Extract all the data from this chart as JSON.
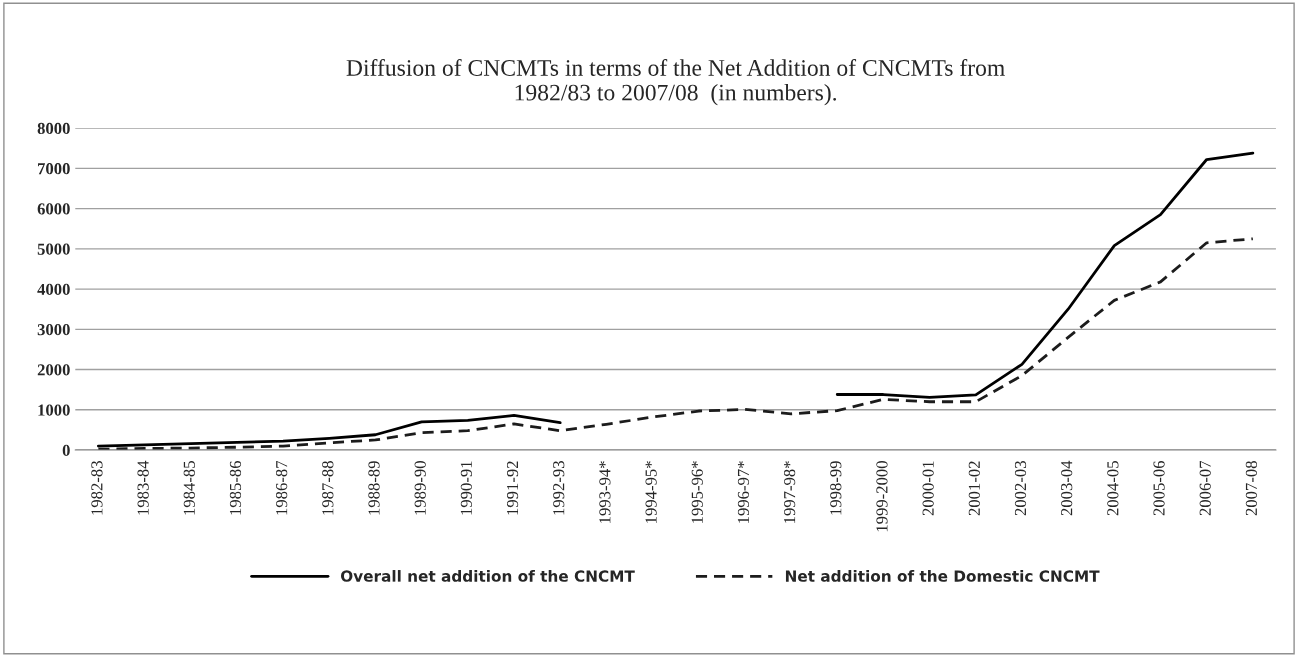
{
  "chart_data": {
    "type": "line",
    "title": "Diffusion of CNCMTs in terms of the Net Addition of CNCMTs from\n1982/83 to 2007/08  (in numbers).",
    "categories": [
      "1982-83",
      "1983-84",
      "1984-85",
      "1985-86",
      "1986-87",
      "1987-88",
      "1988-89",
      "1989-90",
      "1990-91",
      "1991-92",
      "1992-93",
      "1993-94*",
      "1994-95*",
      "1995-96*",
      "1996-97*",
      "1997-98*",
      "1998-99",
      "1999-2000",
      "2000-01",
      "2001-02",
      "2002-03",
      "2003-04",
      "2004-05",
      "2005-06",
      "2006-07",
      "2007-08"
    ],
    "series": [
      {
        "name": "Overall net addition of the CNCMT",
        "color": "#000000",
        "line_style": "solid",
        "values": [
          100,
          130,
          160,
          190,
          220,
          290,
          380,
          700,
          740,
          860,
          680,
          null,
          null,
          null,
          null,
          null,
          1380,
          1380,
          1310,
          1370,
          2130,
          3500,
          5080,
          5850,
          7220,
          7380
        ]
      },
      {
        "name": "Net addition of the Domestic CNCMT",
        "color": "#1c1c1c",
        "line_style": "dashed",
        "values": [
          20,
          40,
          50,
          70,
          100,
          180,
          250,
          430,
          480,
          650,
          480,
          640,
          820,
          970,
          1010,
          900,
          980,
          1260,
          1200,
          1200,
          1850,
          2800,
          3720,
          4180,
          5150,
          5250
        ]
      }
    ],
    "ylim": [
      0,
      8000
    ],
    "yticks": [
      0,
      1000,
      2000,
      3000,
      4000,
      5000,
      6000,
      7000,
      8000
    ],
    "grid": "y",
    "legend": "bottom",
    "marker": "none"
  }
}
